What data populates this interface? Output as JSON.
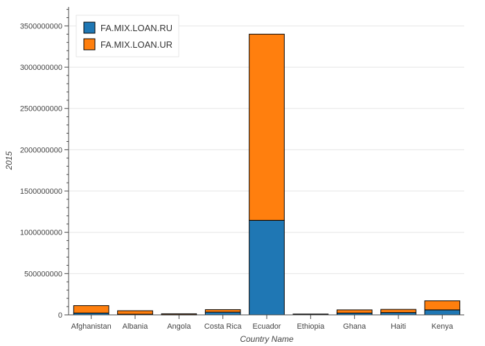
{
  "chart_data": {
    "type": "bar",
    "stacked": true,
    "xlabel": "Country Name",
    "ylabel": "2015",
    "ylim": [
      0,
      3730000000
    ],
    "yticks": [
      0,
      500000000,
      1000000000,
      1500000000,
      2000000000,
      2500000000,
      3000000000,
      3500000000
    ],
    "ytick_labels": [
      "0",
      "500000000",
      "1000000000",
      "1500000000",
      "2000000000",
      "2500000000",
      "3000000000",
      "3500000000"
    ],
    "categories": [
      "Afghanistan",
      "Albania",
      "Angola",
      "Costa Rica",
      "Ecuador",
      "Ethiopia",
      "Ghana",
      "Haiti",
      "Kenya"
    ],
    "series": [
      {
        "name": "FA.MIX.LOAN.RU",
        "color": "#1f77b4",
        "values": [
          22000000,
          8000000,
          3000000,
          33000000,
          1145000000,
          5000000,
          22000000,
          28000000,
          60000000
        ]
      },
      {
        "name": "FA.MIX.LOAN.UR",
        "color": "#ff7f0e",
        "values": [
          90000000,
          42000000,
          10000000,
          30000000,
          2255000000,
          5000000,
          38000000,
          38000000,
          110000000
        ]
      }
    ],
    "grid": true,
    "legend_position": "top-left"
  }
}
